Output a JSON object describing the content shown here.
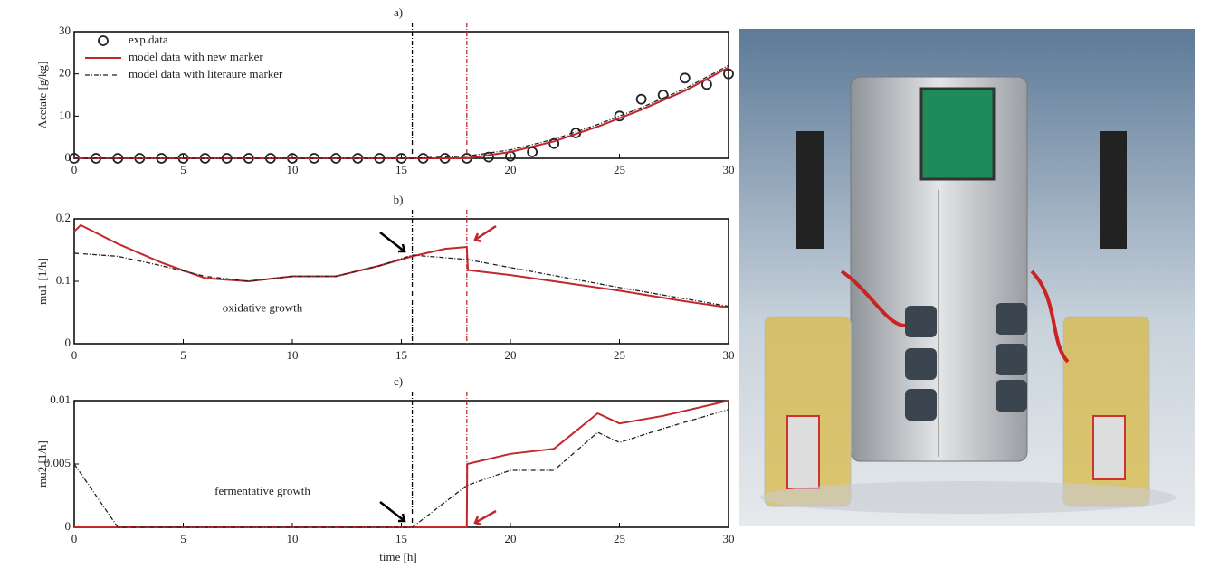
{
  "chart_data": [
    {
      "type": "line",
      "title": "a)",
      "ylabel": "Acetate  [g/kg]",
      "xlim": [
        0,
        30
      ],
      "xticks": [
        0,
        5,
        10,
        15,
        20,
        25,
        30
      ],
      "ylim": [
        0,
        30
      ],
      "yticks": [
        0,
        10,
        20,
        30
      ],
      "legend": "upper left",
      "vlines": [
        {
          "x": 15.5,
          "color": "#000000"
        },
        {
          "x": 18,
          "color": "#c0282d"
        }
      ],
      "series": [
        {
          "name": "exp.data",
          "mode": "markers",
          "color": "#222222",
          "x": [
            0,
            1,
            2,
            3,
            4,
            5,
            6,
            7,
            8,
            9,
            10,
            11,
            12,
            13,
            14,
            15,
            16,
            17,
            18,
            19,
            20,
            21,
            22,
            23,
            25,
            26,
            27,
            28,
            29,
            30
          ],
          "values": [
            0,
            0,
            0,
            0,
            0,
            0,
            0,
            0,
            0,
            0,
            0,
            0,
            0,
            0,
            0,
            0,
            0,
            0,
            0,
            0.3,
            0.5,
            1.5,
            3.5,
            6,
            10,
            14,
            15,
            19,
            17.5,
            20
          ]
        },
        {
          "name": "model data with new marker",
          "mode": "line",
          "color": "#c0282d",
          "x": [
            0,
            18,
            20,
            22,
            24,
            26,
            28,
            30
          ],
          "values": [
            0,
            0,
            1.5,
            4,
            7.5,
            11.5,
            16,
            21.5
          ]
        },
        {
          "name": "model data with literaure marker",
          "mode": "dashdot",
          "color": "#222222",
          "x": [
            0,
            15.5,
            18,
            20,
            22,
            24,
            26,
            28,
            30
          ],
          "values": [
            0,
            0,
            0.5,
            2,
            4.5,
            8,
            12,
            16.5,
            22
          ]
        }
      ]
    },
    {
      "type": "line",
      "title": "b)",
      "ylabel": "mu1 [1/h]",
      "annotation": "oxidative growth",
      "xlim": [
        0,
        30
      ],
      "xticks": [
        0,
        5,
        10,
        15,
        20,
        25,
        30
      ],
      "ylim": [
        0,
        0.2
      ],
      "yticks": [
        0,
        0.1,
        0.2
      ],
      "vlines": [
        {
          "x": 15.5,
          "color": "#000000"
        },
        {
          "x": 18,
          "color": "#c0282d"
        }
      ],
      "series": [
        {
          "name": "model data with new marker",
          "mode": "line",
          "color": "#c0282d",
          "x": [
            0,
            0.3,
            2,
            4,
            6,
            8,
            10,
            12,
            14,
            15.5,
            17,
            18,
            18.05,
            20,
            22,
            25,
            28,
            30
          ],
          "values": [
            0.18,
            0.19,
            0.16,
            0.13,
            0.105,
            0.1,
            0.108,
            0.108,
            0.125,
            0.14,
            0.152,
            0.155,
            0.118,
            0.11,
            0.1,
            0.085,
            0.068,
            0.058
          ]
        },
        {
          "name": "model data with literaure marker",
          "mode": "dashdot",
          "color": "#222222",
          "x": [
            0,
            2,
            4,
            6,
            8,
            10,
            12,
            14,
            15.5,
            18,
            20,
            25,
            30
          ],
          "values": [
            0.145,
            0.14,
            0.125,
            0.108,
            0.1,
            0.108,
            0.108,
            0.125,
            0.142,
            0.135,
            0.122,
            0.09,
            0.06
          ]
        }
      ]
    },
    {
      "type": "line",
      "title": "c)",
      "ylabel": "mu2 [1/h]",
      "xlabel": "time [h]",
      "annotation": "fermentative growth",
      "xlim": [
        0,
        30
      ],
      "xticks": [
        0,
        5,
        10,
        15,
        20,
        25,
        30
      ],
      "ylim": [
        0,
        0.01
      ],
      "yticks": [
        0,
        0.005,
        0.01
      ],
      "vlines": [
        {
          "x": 15.5,
          "color": "#000000"
        },
        {
          "x": 18,
          "color": "#c0282d"
        }
      ],
      "series": [
        {
          "name": "model data with new marker",
          "mode": "line",
          "color": "#c0282d",
          "x": [
            0,
            18,
            18.02,
            20,
            22,
            24,
            25,
            27,
            30
          ],
          "values": [
            0,
            0,
            0.005,
            0.0058,
            0.0062,
            0.009,
            0.0082,
            0.0088,
            0.01
          ]
        },
        {
          "name": "model data with literaure marker",
          "mode": "dashdot",
          "color": "#222222",
          "x": [
            0,
            2,
            15.5,
            18,
            20,
            22,
            24,
            25,
            27,
            30
          ],
          "values": [
            0.005,
            0,
            0,
            0.0033,
            0.0045,
            0.0045,
            0.0075,
            0.0067,
            0.0078,
            0.0093
          ]
        }
      ]
    }
  ]
}
